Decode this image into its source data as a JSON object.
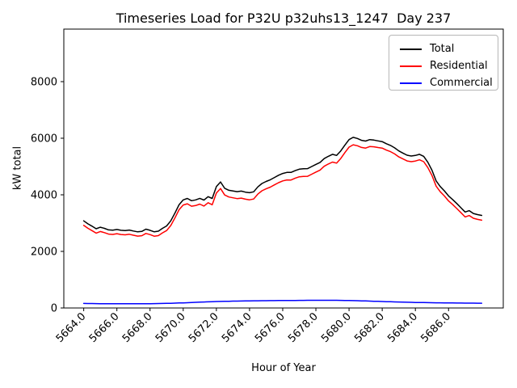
{
  "figure": {
    "background": "#ffffff"
  },
  "chart_data": {
    "type": "line",
    "title": "Timeseries Load for P32U p32uhs13_1247  Day 237",
    "xlabel": "Hour of Year",
    "ylabel": "kW total",
    "x_start": 5664.0,
    "x_step": 0.25,
    "xlim": [
      5662.8,
      5689.3
    ],
    "ylim": [
      0,
      9857
    ],
    "grid": false,
    "xtick_values": [
      5664,
      5666,
      5668,
      5670,
      5672,
      5674,
      5676,
      5678,
      5680,
      5682,
      5684,
      5686
    ],
    "xtick_labels": [
      "5664.0",
      "5666.0",
      "5668.0",
      "5670.0",
      "5672.0",
      "5674.0",
      "5676.0",
      "5678.0",
      "5680.0",
      "5682.0",
      "5684.0",
      "5686.0"
    ],
    "ytick_values": [
      0,
      2000,
      4000,
      6000,
      8000
    ],
    "ytick_labels": [
      "0",
      "2000",
      "4000",
      "6000",
      "8000"
    ],
    "series": [
      {
        "name": "Total",
        "color": "#000000",
        "values": [
          3080,
          2975,
          2890,
          2800,
          2855,
          2815,
          2760,
          2750,
          2775,
          2745,
          2735,
          2755,
          2720,
          2690,
          2705,
          2785,
          2745,
          2690,
          2715,
          2815,
          2900,
          3080,
          3350,
          3650,
          3820,
          3870,
          3790,
          3820,
          3875,
          3815,
          3935,
          3870,
          4290,
          4455,
          4230,
          4160,
          4135,
          4110,
          4130,
          4095,
          4075,
          4105,
          4280,
          4400,
          4470,
          4530,
          4610,
          4690,
          4755,
          4790,
          4790,
          4855,
          4905,
          4920,
          4925,
          5000,
          5075,
          5145,
          5280,
          5360,
          5430,
          5390,
          5550,
          5760,
          5950,
          6030,
          5990,
          5925,
          5900,
          5950,
          5935,
          5905,
          5880,
          5805,
          5745,
          5660,
          5550,
          5475,
          5400,
          5370,
          5390,
          5430,
          5360,
          5150,
          4870,
          4490,
          4290,
          4140,
          3960,
          3830,
          3690,
          3540,
          3390,
          3440,
          3340,
          3300,
          3270
        ]
      },
      {
        "name": "Residential",
        "color": "#ff0000",
        "values": [
          2920,
          2817,
          2734,
          2646,
          2703,
          2664,
          2610,
          2601,
          2627,
          2597,
          2587,
          2607,
          2572,
          2541,
          2555,
          2634,
          2593,
          2536,
          2558,
          2655,
          2738,
          2914,
          3179,
          3474,
          3640,
          3684,
          3598,
          3621,
          3670,
          3604,
          3719,
          3648,
          4062,
          4223,
          3995,
          3922,
          3893,
          3866,
          3883,
          3845,
          3823,
          3851,
          4025,
          4144,
          4212,
          4271,
          4350,
          4428,
          4492,
          4526,
          4524,
          4588,
          4637,
          4651,
          4655,
          4729,
          4803,
          4873,
          5008,
          5088,
          5158,
          5120,
          5282,
          5493,
          5685,
          5769,
          5734,
          5673,
          5652,
          5707,
          5697,
          5672,
          5652,
          5581,
          5526,
          5446,
          5340,
          5269,
          5198,
          5171,
          5195,
          5238,
          5170,
          4962,
          4685,
          4307,
          4108,
          3960,
          3782,
          3654,
          3515,
          3366,
          3218,
          3269,
          3170,
          3131,
          3102
        ]
      },
      {
        "name": "Commercial",
        "color": "#0000ff",
        "values": [
          160,
          158,
          156,
          154,
          152,
          151,
          150,
          149,
          148,
          148,
          148,
          148,
          148,
          149,
          150,
          151,
          152,
          154,
          157,
          160,
          162,
          166,
          171,
          176,
          180,
          186,
          192,
          199,
          205,
          211,
          216,
          222,
          228,
          232,
          235,
          238,
          242,
          244,
          247,
          250,
          252,
          254,
          255,
          256,
          258,
          259,
          260,
          262,
          263,
          264,
          266,
          267,
          268,
          269,
          270,
          271,
          272,
          272,
          272,
          272,
          272,
          270,
          268,
          267,
          265,
          261,
          256,
          252,
          248,
          243,
          238,
          233,
          228,
          224,
          219,
          214,
          210,
          206,
          202,
          199,
          195,
          192,
          190,
          188,
          185,
          183,
          182,
          180,
          178,
          176,
          175,
          174,
          172,
          171,
          170,
          169,
          168
        ]
      }
    ],
    "legend": {
      "position": "upper-right",
      "entries": [
        {
          "label": "Total",
          "color": "#000000"
        },
        {
          "label": "Residential",
          "color": "#ff0000"
        },
        {
          "label": "Commercial",
          "color": "#0000ff"
        }
      ]
    }
  }
}
